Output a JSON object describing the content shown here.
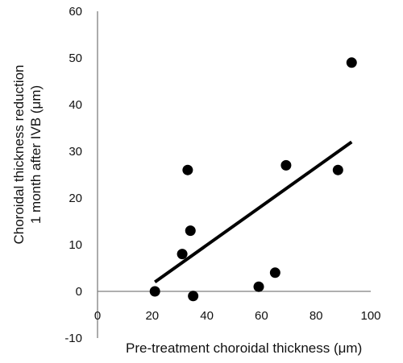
{
  "chart_data": {
    "type": "scatter",
    "title": "",
    "xlabel": "Pre-treatment choroidal thickness (μm)",
    "ylabel_line1": "Choroidal thickness reduction",
    "ylabel_line2": "1 month after IVB (μm)",
    "xlim": [
      0,
      100
    ],
    "ylim": [
      -10,
      60
    ],
    "x_ticks": [
      "0",
      "20",
      "40",
      "60",
      "80",
      "100"
    ],
    "y_ticks": [
      "-10",
      "0",
      "10",
      "20",
      "30",
      "40",
      "50",
      "60"
    ],
    "grid": false,
    "legend": "none",
    "points": [
      {
        "x": 21,
        "y": 0
      },
      {
        "x": 31,
        "y": 8
      },
      {
        "x": 33,
        "y": 26
      },
      {
        "x": 34,
        "y": 13
      },
      {
        "x": 35,
        "y": -1
      },
      {
        "x": 59,
        "y": 1
      },
      {
        "x": 65,
        "y": 4
      },
      {
        "x": 69,
        "y": 27
      },
      {
        "x": 88,
        "y": 26
      },
      {
        "x": 93,
        "y": 49
      }
    ],
    "trendline": {
      "x": [
        21,
        93
      ],
      "y": [
        2,
        32
      ]
    },
    "colors": {
      "marker": "#000000",
      "trendline": "#000000",
      "axis": "#7f7f7f"
    }
  }
}
